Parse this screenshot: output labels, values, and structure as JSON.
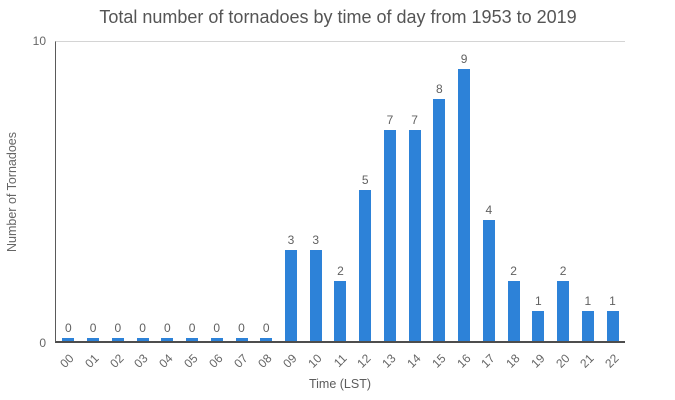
{
  "chart_data": {
    "type": "bar",
    "title": "Total number of tornadoes by time of day from 1953 to 2019",
    "xlabel": "Time (LST)",
    "ylabel": "Number of Tornadoes",
    "categories": [
      "00",
      "01",
      "02",
      "03",
      "04",
      "05",
      "06",
      "07",
      "08",
      "09",
      "10",
      "11",
      "12",
      "13",
      "14",
      "15",
      "16",
      "17",
      "18",
      "19",
      "20",
      "21",
      "22"
    ],
    "values": [
      0,
      0,
      0,
      0,
      0,
      0,
      0,
      0,
      0,
      3,
      3,
      2,
      5,
      7,
      7,
      8,
      9,
      4,
      2,
      1,
      2,
      1,
      1
    ],
    "ylim": [
      0,
      10
    ],
    "yticks": [
      "0",
      "10"
    ],
    "bar_color": "#2d82d8",
    "show_data_labels": true,
    "legend": "none",
    "grid": "top boundary line at y=10 only"
  }
}
